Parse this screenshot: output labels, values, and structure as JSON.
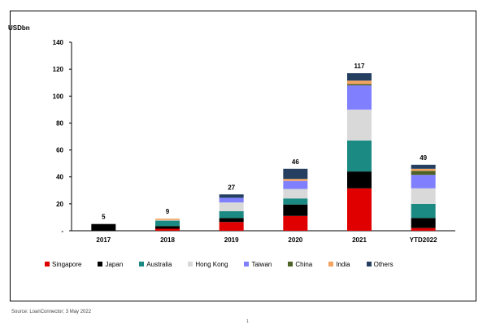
{
  "unit_label": "USDbn",
  "source": "Source: LoanConnector; 3 May 2022",
  "page_number": "1",
  "chart_data": {
    "type": "bar",
    "stacked": true,
    "categories": [
      "2017",
      "2018",
      "2019",
      "2020",
      "2021",
      "YTD2022"
    ],
    "totals": [
      "5",
      "9",
      "27",
      "46",
      "117",
      "49"
    ],
    "y_ticks": [
      "-",
      "20",
      "40",
      "60",
      "80",
      "100",
      "120",
      "140"
    ],
    "ylim": [
      0,
      140
    ],
    "grid": false,
    "legend_position": "bottom",
    "series": [
      {
        "name": "Singapore",
        "color": "#e00000",
        "values": [
          0,
          1.5,
          6.5,
          11,
          31.5,
          2
        ]
      },
      {
        "name": "Japan",
        "color": "#000000",
        "values": [
          5,
          2,
          3,
          8.5,
          12.5,
          7.5
        ]
      },
      {
        "name": "Australia",
        "color": "#1a8a82",
        "values": [
          0,
          4,
          5,
          4.5,
          23,
          10.5
        ]
      },
      {
        "name": "Hong Kong",
        "color": "#d9d9d9",
        "values": [
          0,
          0.5,
          6.5,
          7,
          23,
          11.5
        ]
      },
      {
        "name": "Taiwan",
        "color": "#8080ff",
        "values": [
          0,
          0,
          3.5,
          6,
          18,
          10
        ]
      },
      {
        "name": "China",
        "color": "#4f6228",
        "values": [
          0,
          0,
          0,
          0,
          1,
          3
        ]
      },
      {
        "name": "India",
        "color": "#f4a460",
        "values": [
          0,
          1,
          0,
          1.5,
          2.5,
          1.5
        ]
      },
      {
        "name": "Others",
        "color": "#243f60",
        "values": [
          0,
          0,
          2.5,
          7.5,
          5.5,
          3
        ]
      }
    ]
  }
}
